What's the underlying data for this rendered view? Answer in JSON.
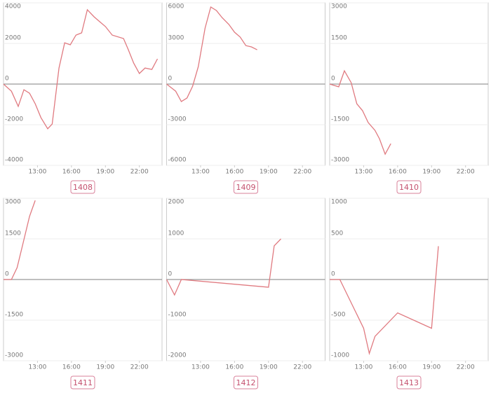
{
  "chart_data": [
    {
      "type": "line",
      "title": "1408",
      "color": "#e07a80",
      "x": [
        10.0,
        10.7,
        11.3,
        11.8,
        12.3,
        12.8,
        13.3,
        13.9,
        14.3,
        14.9,
        15.4,
        15.9,
        16.4,
        16.9,
        17.4,
        18.0,
        18.5,
        19.0,
        19.6,
        20.6,
        21.0,
        21.5,
        22.0,
        22.5,
        23.1,
        23.6
      ],
      "values": [
        0,
        -350,
        -1100,
        -280,
        -450,
        -970,
        -1650,
        -2200,
        -1970,
        790,
        2030,
        1930,
        2410,
        2520,
        3660,
        3310,
        3070,
        2830,
        2410,
        2240,
        1720,
        1030,
        520,
        790,
        720,
        1240
      ],
      "xlim": [
        10,
        24
      ],
      "ylim": [
        -4000,
        4000
      ],
      "xticks": [
        {
          "value": 13,
          "label": "13:00"
        },
        {
          "value": 16,
          "label": "16:00"
        },
        {
          "value": 19,
          "label": "19:00"
        },
        {
          "value": 22,
          "label": "22:00"
        }
      ],
      "yticks": [
        -4000,
        -2000,
        0,
        2000,
        4000
      ]
    },
    {
      "type": "line",
      "title": "1409",
      "color": "#e07a80",
      "x": [
        10.0,
        10.8,
        11.3,
        11.8,
        12.3,
        12.8,
        13.4,
        13.9,
        14.4,
        14.9,
        15.5,
        16.0,
        16.5,
        17.0,
        17.5,
        18.0
      ],
      "values": [
        0,
        -520,
        -1290,
        -1030,
        -160,
        1290,
        4140,
        5690,
        5430,
        4910,
        4400,
        3830,
        3470,
        2840,
        2740,
        2530
      ],
      "xlim": [
        10,
        24
      ],
      "ylim": [
        -6000,
        6000
      ],
      "xticks": [
        {
          "value": 13,
          "label": "13:00"
        },
        {
          "value": 16,
          "label": "16:00"
        },
        {
          "value": 19,
          "label": "19:00"
        },
        {
          "value": 22,
          "label": "22:00"
        }
      ],
      "yticks": [
        -6000,
        -3000,
        0,
        3000,
        6000
      ]
    },
    {
      "type": "line",
      "title": "1410",
      "color": "#e07a80",
      "x": [
        10.0,
        10.8,
        11.3,
        11.9,
        12.4,
        12.9,
        13.4,
        14.0,
        14.4,
        14.9,
        15.4
      ],
      "values": [
        0,
        -100,
        490,
        50,
        -730,
        -980,
        -1420,
        -1710,
        -2020,
        -2590,
        -2200
      ],
      "xlim": [
        10,
        24
      ],
      "ylim": [
        -3000,
        3000
      ],
      "xticks": [
        {
          "value": 13,
          "label": "13:00"
        },
        {
          "value": 16,
          "label": "16:00"
        },
        {
          "value": 19,
          "label": "19:00"
        },
        {
          "value": 22,
          "label": "22:00"
        }
      ],
      "yticks": [
        -3000,
        -1500,
        0,
        1500,
        3000
      ]
    },
    {
      "type": "line",
      "title": "1411",
      "color": "#e07a80",
      "x": [
        10.0,
        10.7,
        11.2,
        11.7,
        12.3,
        12.8
      ],
      "values": [
        0,
        0,
        440,
        1290,
        2330,
        2920
      ],
      "xlim": [
        10,
        24
      ],
      "ylim": [
        -3000,
        3000
      ],
      "xticks": [
        {
          "value": 13,
          "label": "13:00"
        },
        {
          "value": 16,
          "label": "16:00"
        },
        {
          "value": 19,
          "label": "19:00"
        },
        {
          "value": 22,
          "label": "22:00"
        }
      ],
      "yticks": [
        -3000,
        -1500,
        0,
        1500,
        3000
      ]
    },
    {
      "type": "line",
      "title": "1412",
      "color": "#e07a80",
      "x": [
        10.0,
        10.7,
        11.3,
        19.0,
        19.5,
        20.1
      ],
      "values": [
        0,
        -380,
        0,
        -190,
        830,
        1000
      ],
      "xlim": [
        10,
        24
      ],
      "ylim": [
        -2000,
        2000
      ],
      "xticks": [
        {
          "value": 13,
          "label": "13:00"
        },
        {
          "value": 16,
          "label": "16:00"
        },
        {
          "value": 19,
          "label": "19:00"
        },
        {
          "value": 22,
          "label": "22:00"
        }
      ],
      "yticks": [
        -2000,
        -1000,
        0,
        1000,
        2000
      ]
    },
    {
      "type": "line",
      "title": "1413",
      "color": "#e07a80",
      "x": [
        10.0,
        10.9,
        13.0,
        13.5,
        14.0,
        16.0,
        19.0,
        19.6
      ],
      "values": [
        0,
        0,
        -600,
        -910,
        -700,
        -410,
        -600,
        410
      ],
      "xlim": [
        10,
        24
      ],
      "ylim": [
        -1000,
        1000
      ],
      "xticks": [
        {
          "value": 13,
          "label": "13:00"
        },
        {
          "value": 16,
          "label": "16:00"
        },
        {
          "value": 19,
          "label": "19:00"
        },
        {
          "value": 22,
          "label": "22:00"
        }
      ],
      "yticks": [
        -1000,
        -500,
        0,
        500,
        1000
      ]
    }
  ]
}
